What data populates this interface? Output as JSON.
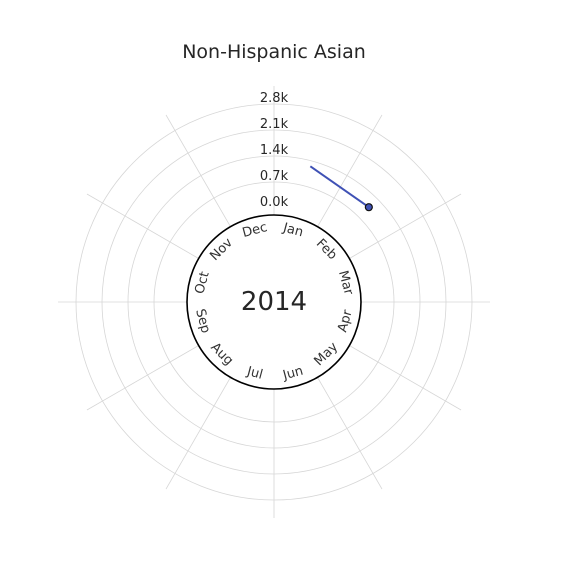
{
  "chart_data": {
    "type": "line",
    "projection": "polar",
    "title": "Non-Hispanic Asian",
    "center_label": "2014",
    "months": [
      "Jan",
      "Feb",
      "Mar",
      "Apr",
      "May",
      "Jun",
      "Jul",
      "Aug",
      "Sep",
      "Oct",
      "Nov",
      "Dec"
    ],
    "r_ticks": [
      0,
      700,
      1400,
      2100,
      2800
    ],
    "r_tick_labels": [
      "0.0k",
      "0.7k",
      "1.4k",
      "2.1k",
      "2.8k"
    ],
    "rlim": [
      0,
      3500
    ],
    "grid": true,
    "series": [
      {
        "color": "#3F51B5",
        "points": [
          {
            "month": "Jan",
            "value": 1250
          },
          {
            "month": "Feb",
            "value": 1080
          }
        ],
        "marker_at": "Feb"
      }
    ]
  }
}
